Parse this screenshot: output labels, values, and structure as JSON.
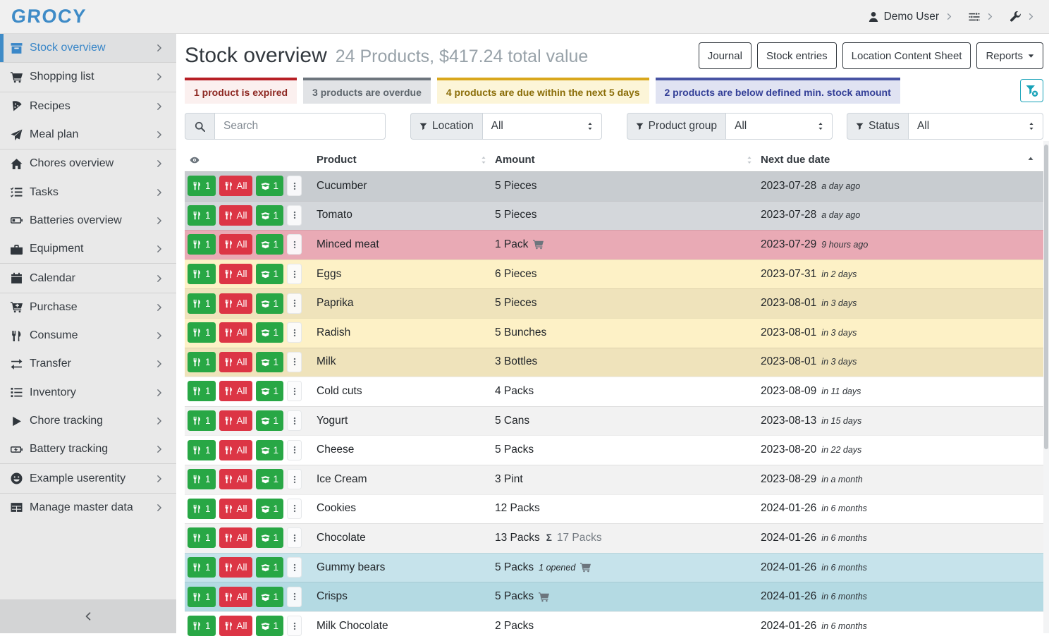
{
  "app": {
    "logo": "GROCY"
  },
  "topbar": {
    "user": "Demo User"
  },
  "sidebar": {
    "items": [
      {
        "label": "Stock overview",
        "icon": "box",
        "active": true,
        "divider_after": true
      },
      {
        "label": "Shopping list",
        "icon": "cart",
        "divider_after": true
      },
      {
        "label": "Recipes",
        "icon": "pizza"
      },
      {
        "label": "Meal plan",
        "icon": "paper-plane",
        "divider_after": true
      },
      {
        "label": "Chores overview",
        "icon": "home"
      },
      {
        "label": "Tasks",
        "icon": "tasks"
      },
      {
        "label": "Batteries overview",
        "icon": "battery"
      },
      {
        "label": "Equipment",
        "icon": "briefcase",
        "divider_after": true
      },
      {
        "label": "Calendar",
        "icon": "calendar",
        "divider_after": true
      },
      {
        "label": "Purchase",
        "icon": "cart-plus"
      },
      {
        "label": "Consume",
        "icon": "utensils"
      },
      {
        "label": "Transfer",
        "icon": "exchange"
      },
      {
        "label": "Inventory",
        "icon": "list"
      },
      {
        "label": "Chore tracking",
        "icon": "play"
      },
      {
        "label": "Battery tracking",
        "icon": "battery-charging",
        "divider_after": true
      },
      {
        "label": "Example userentity",
        "icon": "smiley",
        "divider_after": true
      },
      {
        "label": "Manage master data",
        "icon": "table",
        "chevron": true
      }
    ]
  },
  "page": {
    "title": "Stock overview",
    "subtitle": "24 Products, $417.24 total value",
    "actions": [
      "Journal",
      "Stock entries",
      "Location Content Sheet"
    ],
    "reports_label": "Reports"
  },
  "banners": [
    {
      "text": "1 product is expired",
      "type": "expired"
    },
    {
      "text": "3 products are overdue",
      "type": "overdue"
    },
    {
      "text": "4 products are due within the next 5 days",
      "type": "due-soon"
    },
    {
      "text": "2 products are below defined min. stock amount",
      "type": "below-min"
    }
  ],
  "filters": {
    "search_placeholder": "Search",
    "groups": [
      {
        "label": "Location",
        "value": "All"
      },
      {
        "label": "Product group",
        "value": "All"
      },
      {
        "label": "Status",
        "value": "All"
      }
    ]
  },
  "table": {
    "columns": [
      "Product",
      "Amount",
      "Next due date"
    ],
    "actions": {
      "consume_one": "1",
      "consume_all": "All",
      "open_one": "1"
    },
    "aggregate_symbol": "Σ",
    "rows": [
      {
        "product": "Cucumber",
        "amount": "5 Pieces",
        "date": "2023-07-28",
        "due": "a day ago",
        "status": "overdue"
      },
      {
        "product": "Tomato",
        "amount": "5 Pieces",
        "date": "2023-07-28",
        "due": "a day ago",
        "status": "overdue"
      },
      {
        "product": "Minced meat",
        "amount": "1 Pack",
        "cart": true,
        "date": "2023-07-29",
        "due": "9 hours ago",
        "status": "expired"
      },
      {
        "product": "Eggs",
        "amount": "6 Pieces",
        "date": "2023-07-31",
        "due": "in 2 days",
        "status": "due-soon"
      },
      {
        "product": "Paprika",
        "amount": "5 Pieces",
        "date": "2023-08-01",
        "due": "in 3 days",
        "status": "due-soon"
      },
      {
        "product": "Radish",
        "amount": "5 Bunches",
        "date": "2023-08-01",
        "due": "in 3 days",
        "status": "due-soon"
      },
      {
        "product": "Milk",
        "amount": "3 Bottles",
        "date": "2023-08-01",
        "due": "in 3 days",
        "status": "due-soon"
      },
      {
        "product": "Cold cuts",
        "amount": "4 Packs",
        "date": "2023-08-09",
        "due": "in 11 days",
        "status": "none"
      },
      {
        "product": "Yogurt",
        "amount": "5 Cans",
        "date": "2023-08-13",
        "due": "in 15 days",
        "status": "none"
      },
      {
        "product": "Cheese",
        "amount": "5 Packs",
        "date": "2023-08-20",
        "due": "in 22 days",
        "status": "none"
      },
      {
        "product": "Ice Cream",
        "amount": "3 Pint",
        "date": "2023-08-29",
        "due": "in a month",
        "status": "none"
      },
      {
        "product": "Cookies",
        "amount": "12 Packs",
        "date": "2024-01-26",
        "due": "in 6 months",
        "status": "none"
      },
      {
        "product": "Chocolate",
        "amount": "13 Packs",
        "aggregate": "17 Packs",
        "date": "2024-01-26",
        "due": "in 6 months",
        "status": "none"
      },
      {
        "product": "Gummy bears",
        "amount": "5 Packs",
        "note": "1 opened",
        "cart": true,
        "date": "2024-01-26",
        "due": "in 6 months",
        "status": "below-min"
      },
      {
        "product": "Crisps",
        "amount": "5 Packs",
        "cart": true,
        "date": "2024-01-26",
        "due": "in 6 months",
        "status": "below-min"
      },
      {
        "product": "Milk Chocolate",
        "amount": "2 Packs",
        "date": "2024-01-26",
        "due": "in 6 months",
        "status": "none"
      }
    ]
  }
}
